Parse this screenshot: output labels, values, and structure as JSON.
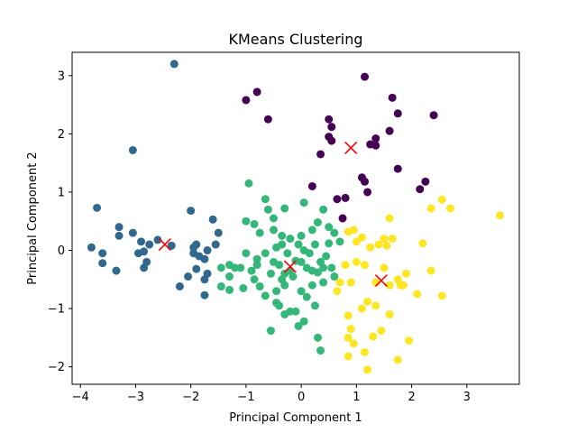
{
  "chart_data": {
    "type": "scatter",
    "title": "KMeans Clustering",
    "xlabel": "Principal Component 1",
    "ylabel": "Principal Component 2",
    "xlim": [
      -4.15,
      3.95
    ],
    "ylim": [
      -2.3,
      3.4
    ],
    "xticks": [
      -4,
      -3,
      -2,
      -1,
      0,
      1,
      2,
      3
    ],
    "yticks": [
      -2,
      -1,
      0,
      1,
      2,
      3
    ],
    "grid": false,
    "colors": {
      "cluster_purple": "#440154",
      "cluster_blue": "#31688e",
      "cluster_green": "#35b779",
      "cluster_yellow": "#fde725",
      "centroid": "#ff0000"
    },
    "series": [
      {
        "color": "#440154",
        "points": [
          [
            -0.8,
            2.72
          ],
          [
            -1.0,
            2.58
          ],
          [
            -0.6,
            2.25
          ],
          [
            1.15,
            2.98
          ],
          [
            1.65,
            2.62
          ],
          [
            1.75,
            2.35
          ],
          [
            2.4,
            2.32
          ],
          [
            0.5,
            2.25
          ],
          [
            0.55,
            2.12
          ],
          [
            1.6,
            2.05
          ],
          [
            0.5,
            1.95
          ],
          [
            0.55,
            1.88
          ],
          [
            1.25,
            1.82
          ],
          [
            1.35,
            1.8
          ],
          [
            1.35,
            1.92
          ],
          [
            0.35,
            1.65
          ],
          [
            1.1,
            1.25
          ],
          [
            1.15,
            1.18
          ],
          [
            1.75,
            1.4
          ],
          [
            2.25,
            1.18
          ],
          [
            2.15,
            1.05
          ],
          [
            0.2,
            1.1
          ],
          [
            0.65,
            0.88
          ],
          [
            0.8,
            0.9
          ],
          [
            0.75,
            0.55
          ],
          [
            1.2,
            1.0
          ]
        ]
      },
      {
        "color": "#31688e",
        "points": [
          [
            -2.3,
            3.2
          ],
          [
            -3.05,
            1.72
          ],
          [
            -3.7,
            0.73
          ],
          [
            -3.8,
            0.05
          ],
          [
            -3.6,
            -0.05
          ],
          [
            -3.6,
            -0.22
          ],
          [
            -3.35,
            -0.35
          ],
          [
            -3.3,
            0.4
          ],
          [
            -3.3,
            0.25
          ],
          [
            -3.05,
            0.3
          ],
          [
            -2.95,
            -0.05
          ],
          [
            -2.9,
            0.15
          ],
          [
            -2.75,
            0.1
          ],
          [
            -2.85,
            -0.02
          ],
          [
            -2.8,
            -0.2
          ],
          [
            -2.85,
            -0.3
          ],
          [
            -2.6,
            0.18
          ],
          [
            -2.35,
            0.08
          ],
          [
            -2.2,
            -0.62
          ],
          [
            -2.05,
            -0.45
          ],
          [
            -2.0,
            0.68
          ],
          [
            -1.95,
            0.05
          ],
          [
            -1.9,
            0.1
          ],
          [
            -1.85,
            -0.1
          ],
          [
            -1.9,
            -0.32
          ],
          [
            -1.75,
            -0.15
          ],
          [
            -1.7,
            -0.4
          ],
          [
            -1.75,
            -0.5
          ],
          [
            -1.6,
            0.53
          ],
          [
            -1.5,
            0.3
          ],
          [
            -1.75,
            -0.77
          ],
          [
            -1.55,
            0.1
          ],
          [
            -1.95,
            -0.05
          ],
          [
            -1.7,
            0.0
          ]
        ]
      },
      {
        "color": "#35b779",
        "points": [
          [
            -0.95,
            1.15
          ],
          [
            -0.65,
            0.88
          ],
          [
            -0.6,
            0.7
          ],
          [
            -0.5,
            0.55
          ],
          [
            -0.3,
            0.72
          ],
          [
            0.05,
            0.82
          ],
          [
            0.4,
            0.7
          ],
          [
            -1.0,
            0.5
          ],
          [
            -0.85,
            0.45
          ],
          [
            -0.75,
            0.3
          ],
          [
            -0.5,
            0.35
          ],
          [
            -0.35,
            0.25
          ],
          [
            -0.35,
            0.1
          ],
          [
            -0.2,
            0.2
          ],
          [
            0.0,
            0.25
          ],
          [
            0.2,
            0.35
          ],
          [
            0.3,
            0.48
          ],
          [
            0.5,
            0.4
          ],
          [
            0.6,
            0.3
          ],
          [
            0.7,
            0.15
          ],
          [
            0.5,
            0.12
          ],
          [
            0.25,
            0.1
          ],
          [
            0.05,
            0.0
          ],
          [
            -0.05,
            0.1
          ],
          [
            -0.25,
            -0.05
          ],
          [
            -0.45,
            0.05
          ],
          [
            -0.65,
            -0.05
          ],
          [
            -0.8,
            -0.15
          ],
          [
            -1.0,
            -0.05
          ],
          [
            -1.1,
            -0.3
          ],
          [
            -1.2,
            -0.3
          ],
          [
            -1.3,
            -0.25
          ],
          [
            -1.3,
            -0.45
          ],
          [
            -1.45,
            -0.3
          ],
          [
            -1.05,
            -0.65
          ],
          [
            -1.3,
            -0.68
          ],
          [
            -1.45,
            -0.62
          ],
          [
            -0.85,
            -0.5
          ],
          [
            -0.75,
            -0.62
          ],
          [
            -0.65,
            -0.78
          ],
          [
            -0.55,
            -0.4
          ],
          [
            -0.5,
            -0.2
          ],
          [
            -0.4,
            -0.25
          ],
          [
            -0.3,
            -0.4
          ],
          [
            -0.2,
            -0.35
          ],
          [
            -0.1,
            -0.18
          ],
          [
            0.0,
            -0.2
          ],
          [
            0.1,
            -0.3
          ],
          [
            0.2,
            -0.35
          ],
          [
            0.3,
            -0.38
          ],
          [
            0.35,
            -0.2
          ],
          [
            0.45,
            -0.1
          ],
          [
            0.55,
            -0.3
          ],
          [
            0.6,
            -0.45
          ],
          [
            0.4,
            -0.55
          ],
          [
            0.2,
            -0.6
          ],
          [
            0.1,
            -0.8
          ],
          [
            0.0,
            -0.7
          ],
          [
            -0.15,
            -0.45
          ],
          [
            -0.3,
            -0.6
          ],
          [
            -0.45,
            -0.7
          ],
          [
            -0.45,
            -0.9
          ],
          [
            -0.4,
            -0.95
          ],
          [
            -0.2,
            -1.05
          ],
          [
            -0.1,
            -1.05
          ],
          [
            -0.3,
            -1.1
          ],
          [
            0.25,
            -0.95
          ],
          [
            0.05,
            -1.22
          ],
          [
            -0.05,
            -1.3
          ],
          [
            -0.55,
            -1.38
          ],
          [
            0.3,
            -1.5
          ],
          [
            0.35,
            -1.72
          ],
          [
            -0.8,
            -0.25
          ],
          [
            -0.9,
            -0.35
          ],
          [
            0.15,
            -0.05
          ],
          [
            -0.35,
            -0.5
          ],
          [
            0.4,
            -0.3
          ]
        ]
      },
      {
        "color": "#fde725",
        "points": [
          [
            2.55,
            0.87
          ],
          [
            2.7,
            0.72
          ],
          [
            3.6,
            0.6
          ],
          [
            2.35,
            0.72
          ],
          [
            1.6,
            0.55
          ],
          [
            0.85,
            0.32
          ],
          [
            0.95,
            0.35
          ],
          [
            1.1,
            0.22
          ],
          [
            1.0,
            0.15
          ],
          [
            1.5,
            0.2
          ],
          [
            1.65,
            0.2
          ],
          [
            1.4,
            0.1
          ],
          [
            1.55,
            0.08
          ],
          [
            1.25,
            0.05
          ],
          [
            2.2,
            0.12
          ],
          [
            0.8,
            -0.25
          ],
          [
            1.0,
            -0.2
          ],
          [
            1.15,
            -0.25
          ],
          [
            1.5,
            -0.3
          ],
          [
            1.9,
            -0.4
          ],
          [
            2.35,
            -0.35
          ],
          [
            0.7,
            -0.55
          ],
          [
            0.9,
            -0.55
          ],
          [
            1.35,
            -0.55
          ],
          [
            1.75,
            -0.5
          ],
          [
            1.85,
            -0.6
          ],
          [
            2.1,
            -0.75
          ],
          [
            2.55,
            -0.78
          ],
          [
            0.65,
            -0.7
          ],
          [
            1.2,
            -0.88
          ],
          [
            1.35,
            -0.95
          ],
          [
            1.1,
            -1.0
          ],
          [
            0.85,
            -1.12
          ],
          [
            1.6,
            -1.1
          ],
          [
            0.9,
            -1.35
          ],
          [
            0.85,
            -1.5
          ],
          [
            1.3,
            -1.48
          ],
          [
            1.45,
            -1.38
          ],
          [
            0.95,
            -1.6
          ],
          [
            0.85,
            -1.82
          ],
          [
            1.15,
            -1.75
          ],
          [
            1.75,
            -1.88
          ],
          [
            1.95,
            -1.55
          ],
          [
            1.2,
            -2.05
          ],
          [
            1.8,
            -0.6
          ],
          [
            1.6,
            -0.6
          ]
        ]
      }
    ],
    "centroids": [
      [
        0.9,
        1.76
      ],
      [
        -2.47,
        0.1
      ],
      [
        -0.2,
        -0.28
      ],
      [
        1.45,
        -0.52
      ]
    ]
  }
}
